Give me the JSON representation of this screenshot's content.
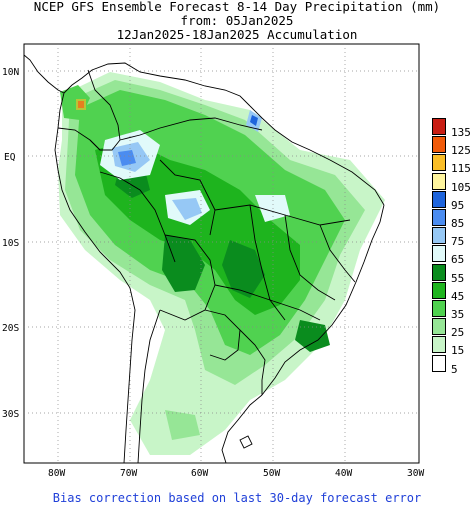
{
  "header": {
    "line1": "NCEP GFS Ensemble Forecast 8-14 Day Precipitation (mm)",
    "line2": "from: 05Jan2025",
    "line3": "12Jan2025-18Jan2025 Accumulation"
  },
  "axes": {
    "lat_labels": [
      "10N",
      "EQ",
      "10S",
      "20S",
      "30S"
    ],
    "lon_labels": [
      "80W",
      "70W",
      "60W",
      "50W",
      "40W",
      "30W"
    ]
  },
  "legend": {
    "levels": [
      {
        "label": "135",
        "color": "#c81e14"
      },
      {
        "label": "125",
        "color": "#f05a0a"
      },
      {
        "label": "115",
        "color": "#fabe28"
      },
      {
        "label": "105",
        "color": "#fff59e"
      },
      {
        "label": "95",
        "color": "#1e64dc"
      },
      {
        "label": "85",
        "color": "#4b8cf0"
      },
      {
        "label": "75",
        "color": "#96c8f5"
      },
      {
        "label": "65",
        "color": "#e1fafa"
      },
      {
        "label": "55",
        "color": "#0a8c1e"
      },
      {
        "label": "45",
        "color": "#1eb41e"
      },
      {
        "label": "35",
        "color": "#50d250"
      },
      {
        "label": "25",
        "color": "#96e696"
      },
      {
        "label": "15",
        "color": "#c8f5c8"
      },
      {
        "label": "5",
        "color": "#ffffff"
      }
    ]
  },
  "footer": {
    "note": "Bias correction based on last 30-day forecast error"
  }
}
